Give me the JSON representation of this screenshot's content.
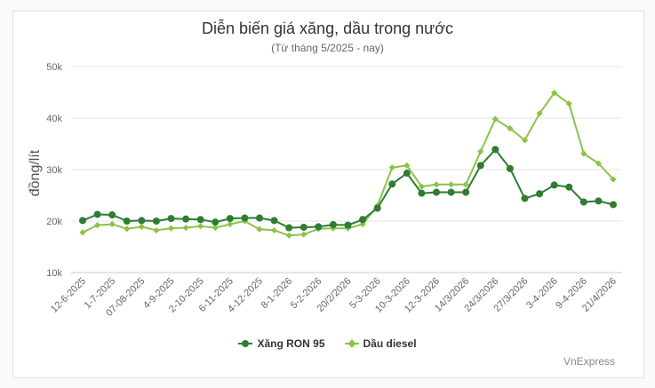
{
  "chart_data": {
    "type": "line",
    "title": "Diễn biến giá xăng, dầu trong nước",
    "subtitle": "(Từ tháng 5/2025 - nay)",
    "ylabel": "đồng/lít",
    "xlabel": "",
    "ylim": [
      10000,
      50000
    ],
    "yticks": [
      "10k",
      "20k",
      "30k",
      "40k",
      "50k"
    ],
    "grid": true,
    "legend_position": "bottom",
    "x": [
      "12-6-2025",
      "21-6-2025",
      "1-7-2025",
      "10-7-2025",
      "07-08-2025",
      "20-8-2025",
      "4-9-2025",
      "13-9-2025",
      "2-10-2025",
      "16-10-2025",
      "6-11-2025",
      "20-11-2025",
      "4-12-2025",
      "20-12-2025",
      "8-1-2026",
      "22-1-2026",
      "5-2-2026",
      "12-2-2026",
      "20/2/2026",
      "26/2/2026",
      "5-3-2026",
      "7-3-2026",
      "10-3-2026",
      "11-3-2026",
      "12-3-2026",
      "13-3-2026",
      "14/3/2026",
      "20/3/2026",
      "24/3/2026",
      "26/3/2026",
      "27/3/2026",
      "30/3/2026",
      "3-4-2026",
      "6-4-2026",
      "9-4-2026",
      "16-4-2026",
      "21/4/2026"
    ],
    "x_tick_labels": [
      "12-6-2025",
      "1-7-2025",
      "07-08-2025",
      "4-9-2025",
      "2-10-2025",
      "6-11-2025",
      "4-12-2025",
      "8-1-2026",
      "5-2-2026",
      "20/2/2026",
      "5-3-2026",
      "10-3-2026",
      "12-3-2026",
      "14/3/2026",
      "24/3/2026",
      "27/3/2026",
      "3-4-2026",
      "9-4-2026",
      "21/4/2026"
    ],
    "series": [
      {
        "name": "Xăng RON 95",
        "color": "#2e7d32",
        "marker": "circle",
        "values": [
          20100,
          21300,
          21200,
          20000,
          20100,
          20000,
          20500,
          20400,
          20300,
          19800,
          20500,
          20600,
          20600,
          20100,
          18700,
          18800,
          18900,
          19300,
          19200,
          20300,
          22500,
          27200,
          29300,
          25400,
          25600,
          25600,
          25600,
          30800,
          33900,
          30200,
          24400,
          25300,
          27000,
          26600,
          23700,
          23900,
          23200
        ]
      },
      {
        "name": "Dầu diesel",
        "color": "#8bc34a",
        "marker": "diamond",
        "values": [
          17800,
          19200,
          19400,
          18500,
          18900,
          18200,
          18600,
          18700,
          19000,
          18700,
          19400,
          20000,
          18400,
          18200,
          17200,
          17400,
          18500,
          18600,
          18600,
          19400,
          23000,
          30400,
          30800,
          26700,
          27100,
          27100,
          27100,
          33500,
          39800,
          38000,
          35700,
          40900,
          44900,
          42800,
          33100,
          31200,
          28100
        ]
      }
    ]
  },
  "credit": "VnExpress"
}
